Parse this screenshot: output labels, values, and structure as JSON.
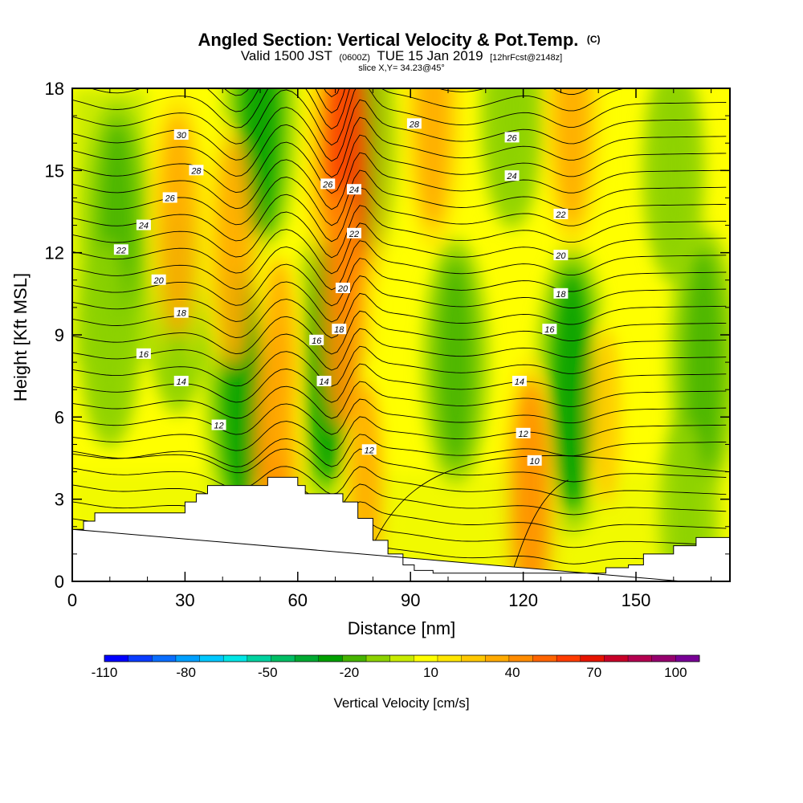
{
  "title": {
    "main": "Angled Section: Vertical Velocity & Pot.Temp.",
    "main_unit": "(C)",
    "valid_prefix": "Valid 1500 JST",
    "valid_utc": "(0600Z)",
    "valid_date": "TUE 15 Jan 2019",
    "forecast": "[12hrFcst@2148z]",
    "slice": "slice X,Y= 34.23@45°"
  },
  "chart_data": {
    "type": "heatmap",
    "xlabel": "Distance [nm]",
    "ylabel": "Height [Kft MSL]",
    "xlim": [
      0,
      175
    ],
    "ylim": [
      0,
      18
    ],
    "x_ticks": [
      "0",
      "30",
      "60",
      "90",
      "120",
      "150"
    ],
    "y_ticks": [
      "0",
      "3",
      "6",
      "9",
      "12",
      "15",
      "18"
    ],
    "colorbar": {
      "title": "Vertical Velocity [cm/s]",
      "labels": [
        "-110",
        "-80",
        "-50",
        "-20",
        "10",
        "40",
        "70",
        "100"
      ],
      "colors": [
        "#0000ff",
        "#0a3cff",
        "#0a6eff",
        "#00a0ff",
        "#00c8ff",
        "#00e6e6",
        "#00d2a0",
        "#00be64",
        "#00aa32",
        "#00a000",
        "#46b400",
        "#8cd200",
        "#c8eb00",
        "#ffff00",
        "#ffe600",
        "#ffc800",
        "#ffaa00",
        "#ff8c00",
        "#ff6400",
        "#ff3c00",
        "#e61400",
        "#c80028",
        "#b40050",
        "#96006e",
        "#780096"
      ]
    },
    "terrain_kft": [
      [
        0,
        1.9
      ],
      [
        3,
        2.2
      ],
      [
        6,
        2.5
      ],
      [
        30,
        2.9
      ],
      [
        33,
        3.2
      ],
      [
        36,
        3.5
      ],
      [
        50,
        3.5
      ],
      [
        52,
        3.8
      ],
      [
        58,
        3.8
      ],
      [
        60,
        3.5
      ],
      [
        62,
        3.2
      ],
      [
        70,
        3.2
      ],
      [
        72,
        2.9
      ],
      [
        76,
        2.3
      ],
      [
        80,
        1.5
      ],
      [
        84,
        1.0
      ],
      [
        88,
        0.6
      ],
      [
        91,
        0.4
      ],
      [
        96,
        0.3
      ],
      [
        128,
        0.3
      ],
      [
        136,
        0.3
      ],
      [
        142,
        0.5
      ],
      [
        148,
        0.6
      ],
      [
        152,
        1.0
      ],
      [
        160,
        1.3
      ],
      [
        166,
        1.6
      ],
      [
        175,
        1.6
      ]
    ],
    "updrafts": [
      {
        "x": 28,
        "y": 13,
        "w": 40
      },
      {
        "x": 43,
        "y": 12,
        "w": 40
      },
      {
        "x": 54,
        "y": 5,
        "w": 45
      },
      {
        "x": 55,
        "y": 8,
        "w": 35
      },
      {
        "x": 73,
        "y": 15,
        "w": 65
      },
      {
        "x": 72,
        "y": 10,
        "w": 45
      },
      {
        "x": 78,
        "y": 3.5,
        "w": 35
      },
      {
        "x": 96,
        "y": 17,
        "w": 40
      },
      {
        "x": 122,
        "y": 3,
        "w": 45
      },
      {
        "x": 133,
        "y": 17,
        "w": 40
      },
      {
        "x": 142,
        "y": 6,
        "w": 25
      }
    ],
    "downdrafts": [
      {
        "x": 12,
        "y": 13,
        "w": -20
      },
      {
        "x": 10,
        "y": 9,
        "w": -15
      },
      {
        "x": 28,
        "y": 10,
        "w": -12
      },
      {
        "x": 45,
        "y": 7,
        "w": -30
      },
      {
        "x": 50,
        "y": 17,
        "w": -30
      },
      {
        "x": 68,
        "y": 8,
        "w": -30
      },
      {
        "x": 77,
        "y": 16,
        "w": -25
      },
      {
        "x": 102,
        "y": 8,
        "w": -20
      },
      {
        "x": 133,
        "y": 7,
        "w": -30
      },
      {
        "x": 168,
        "y": 8,
        "w": -25
      },
      {
        "x": 160,
        "y": 15,
        "w": -15
      },
      {
        "x": 117,
        "y": 17,
        "w": -15
      },
      {
        "x": 164,
        "y": 2.5,
        "w": -12
      }
    ],
    "contour_labels": [
      {
        "x": 29,
        "y": 16.3,
        "text": "30"
      },
      {
        "x": 33,
        "y": 15.0,
        "text": "28"
      },
      {
        "x": 26,
        "y": 14.0,
        "text": "26"
      },
      {
        "x": 19,
        "y": 13.0,
        "text": "24"
      },
      {
        "x": 13,
        "y": 12.1,
        "text": "22"
      },
      {
        "x": 23,
        "y": 11.0,
        "text": "20"
      },
      {
        "x": 29,
        "y": 9.8,
        "text": "18"
      },
      {
        "x": 19,
        "y": 8.3,
        "text": "16"
      },
      {
        "x": 29,
        "y": 7.3,
        "text": "14"
      },
      {
        "x": 39,
        "y": 5.7,
        "text": "12"
      },
      {
        "x": 68,
        "y": 14.5,
        "text": "26"
      },
      {
        "x": 75,
        "y": 14.3,
        "text": "24"
      },
      {
        "x": 75,
        "y": 12.7,
        "text": "22"
      },
      {
        "x": 72,
        "y": 10.7,
        "text": "20"
      },
      {
        "x": 71,
        "y": 9.2,
        "text": "18"
      },
      {
        "x": 65,
        "y": 8.8,
        "text": "16"
      },
      {
        "x": 67,
        "y": 7.3,
        "text": "14"
      },
      {
        "x": 79,
        "y": 4.8,
        "text": "12"
      },
      {
        "x": 91,
        "y": 16.7,
        "text": "28"
      },
      {
        "x": 117,
        "y": 16.2,
        "text": "26"
      },
      {
        "x": 117,
        "y": 14.8,
        "text": "24"
      },
      {
        "x": 130,
        "y": 13.4,
        "text": "22"
      },
      {
        "x": 130,
        "y": 11.9,
        "text": "20"
      },
      {
        "x": 130,
        "y": 10.5,
        "text": "18"
      },
      {
        "x": 127,
        "y": 9.2,
        "text": "16"
      },
      {
        "x": 119,
        "y": 7.3,
        "text": "14"
      },
      {
        "x": 120,
        "y": 5.4,
        "text": "12"
      },
      {
        "x": 123,
        "y": 4.4,
        "text": "10"
      }
    ]
  }
}
